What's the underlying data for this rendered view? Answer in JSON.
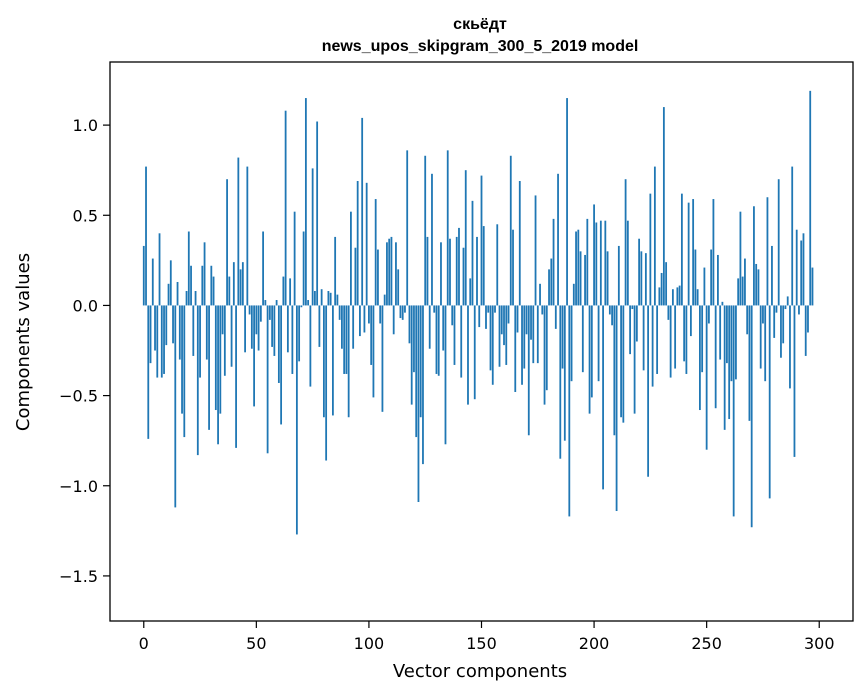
{
  "chart_data": {
    "type": "bar",
    "title": [
      "скьёдт",
      "news_upos_skipgram_300_5_2019 model"
    ],
    "xlabel": "Vector components",
    "ylabel": "Components values",
    "xlim": [
      -15,
      315
    ],
    "ylim": [
      -1.75,
      1.35
    ],
    "xticks": [
      0,
      50,
      100,
      150,
      200,
      250,
      300
    ],
    "yticks": [
      1.0,
      0.5,
      0.0,
      -0.5,
      -1.0,
      -1.5
    ],
    "ytick_labels": [
      "1.0",
      "0.5",
      "0.0",
      "−0.5",
      "−1.0",
      "−1.5"
    ],
    "grid": false,
    "bar_color": "#1f77b4",
    "values": [
      0.33,
      0.77,
      -0.74,
      -0.32,
      0.26,
      -0.25,
      -0.4,
      0.4,
      -0.4,
      -0.38,
      -0.22,
      0.12,
      0.25,
      -0.21,
      -1.12,
      0.13,
      -0.3,
      -0.6,
      -0.73,
      0.08,
      0.41,
      0.22,
      -0.28,
      0.08,
      -0.83,
      -0.4,
      0.22,
      0.35,
      -0.3,
      -0.69,
      0.22,
      0.16,
      -0.58,
      -0.77,
      -0.6,
      -0.16,
      -0.39,
      0.7,
      0.16,
      -0.34,
      0.24,
      -0.79,
      0.82,
      0.2,
      0.24,
      -0.26,
      0.77,
      -0.05,
      -0.24,
      -0.56,
      -0.16,
      -0.25,
      -0.09,
      0.41,
      0.03,
      -0.82,
      -0.08,
      -0.23,
      -0.28,
      0.03,
      -0.43,
      -0.66,
      0.16,
      1.08,
      -0.26,
      0.15,
      -0.38,
      0.52,
      -1.27,
      -0.31,
      -0.01,
      0.41,
      1.15,
      0.03,
      -0.45,
      0.76,
      0.08,
      1.02,
      -0.23,
      0.09,
      -0.62,
      -0.86,
      0.08,
      0.07,
      -0.61,
      0.38,
      0.06,
      -0.08,
      -0.24,
      -0.38,
      -0.38,
      -0.62,
      0.52,
      -0.24,
      0.32,
      0.69,
      -0.17,
      1.04,
      -0.15,
      0.68,
      -0.1,
      -0.33,
      -0.51,
      0.59,
      0.31,
      -0.1,
      -0.59,
      0.06,
      0.35,
      0.37,
      0.38,
      -0.16,
      0.35,
      0.2,
      -0.07,
      -0.08,
      -0.04,
      0.86,
      -0.21,
      -0.55,
      -0.37,
      -0.73,
      -1.09,
      -0.62,
      -0.88,
      0.83,
      0.38,
      -0.24,
      0.73,
      -0.04,
      -0.38,
      -0.39,
      0.35,
      -0.25,
      -0.77,
      0.86,
      0.37,
      -0.11,
      -0.33,
      0.38,
      0.43,
      -0.4,
      0.32,
      0.75,
      -0.55,
      0.15,
      0.58,
      -0.52,
      0.38,
      -0.12,
      0.72,
      0.44,
      -0.13,
      -0.04,
      -0.36,
      -0.44,
      -0.04,
      0.45,
      -0.34,
      -0.16,
      -0.22,
      -0.33,
      -0.1,
      0.83,
      0.42,
      -0.48,
      -0.15,
      0.69,
      -0.44,
      -0.35,
      -0.16,
      -0.72,
      -0.19,
      -0.32,
      0.61,
      -0.32,
      0.12,
      -0.05,
      -0.55,
      -0.47,
      0.2,
      0.26,
      0.48,
      -0.13,
      0.73,
      -0.85,
      -0.35,
      -0.75,
      1.15,
      -1.17,
      -0.42,
      0.12,
      0.41,
      0.42,
      0.3,
      -0.37,
      0.28,
      0.48,
      -0.6,
      -0.51,
      0.56,
      0.46,
      -0.42,
      0.47,
      -1.02,
      0.47,
      0.3,
      -0.05,
      -0.11,
      -0.72,
      -1.14,
      0.33,
      -0.62,
      -0.65,
      0.7,
      0.47,
      -0.27,
      -0.02,
      -0.6,
      -0.2,
      0.37,
      0.3,
      -0.36,
      0.29,
      -0.95,
      0.62,
      -0.45,
      0.77,
      -0.38,
      0.1,
      0.18,
      1.1,
      0.24,
      -0.08,
      -0.4,
      0.09,
      -0.35,
      0.1,
      0.11,
      0.62,
      -0.31,
      -0.38,
      0.57,
      -0.17,
      0.59,
      0.31,
      0.09,
      -0.58,
      -0.37,
      0.21,
      -0.8,
      -0.1,
      0.31,
      0.59,
      -0.57,
      0.28,
      -0.3,
      0.02,
      -0.69,
      -0.32,
      -0.63,
      -0.42,
      -1.17,
      -0.41,
      0.15,
      0.52,
      0.16,
      0.26,
      -0.16,
      -0.64,
      -1.23,
      0.55,
      0.23,
      0.2,
      -0.35,
      -0.1,
      -0.42,
      0.6,
      -1.07,
      0.33,
      -0.18,
      -0.04,
      0.7,
      -0.29,
      -0.21,
      -0.02,
      0.05,
      -0.46,
      0.77,
      -0.84,
      0.42,
      -0.05,
      0.36,
      0.4,
      -0.28,
      -0.15,
      1.19,
      0.21
    ]
  }
}
